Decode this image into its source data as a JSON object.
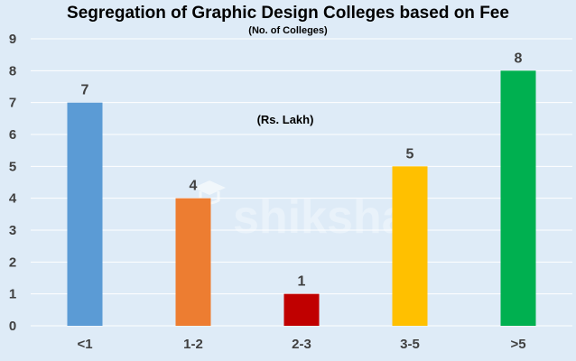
{
  "chart_data": {
    "type": "bar",
    "title": "Segregation of Graphic Design Colleges based on Fee",
    "subtitle": "(No. of Colleges)",
    "annotation": "(Rs. Lakh)",
    "xlabel": "",
    "ylabel": "",
    "categories": [
      "<1",
      "1-2",
      "2-3",
      "3-5",
      ">5"
    ],
    "values": [
      7,
      4,
      1,
      5,
      8
    ],
    "bar_colors": [
      "#5b9bd5",
      "#ed7d31",
      "#c00000",
      "#ffc000",
      "#00b050"
    ],
    "data_labels": [
      "7",
      "4",
      "1",
      "5",
      "8"
    ],
    "ylim": [
      0,
      9
    ],
    "y_ticks": [
      "0",
      "1",
      "2",
      "3",
      "4",
      "5",
      "6",
      "7",
      "8",
      "9"
    ],
    "grid": true,
    "background_color": "#deebf7",
    "gridline_color": "#ffffff",
    "watermark": "shiksha"
  }
}
